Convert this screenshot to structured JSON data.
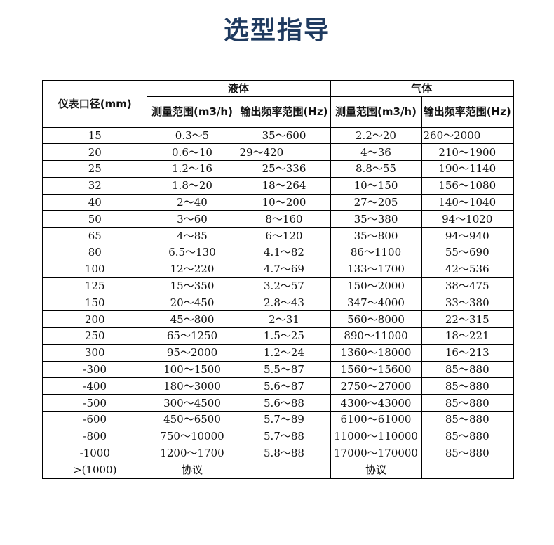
{
  "title": "选型指导",
  "table": {
    "col_diameter": "仪表口径(mm)",
    "group_liquid": "液体",
    "group_gas": "气体",
    "col_flow_range": "测量范围(m3/h)",
    "col_freq_range": "输出频率范围(Hz)",
    "rows": [
      [
        "15",
        "0.3～5",
        "35～600",
        "2.2～20",
        "260～2000"
      ],
      [
        "20",
        "0.6～10",
        "29～420",
        "4～36",
        "210～1900"
      ],
      [
        "25",
        "1.2～16",
        "25～336",
        "8.8～55",
        "190～1140"
      ],
      [
        "32",
        "1.8～20",
        "18～264",
        "10～150",
        "156～1080"
      ],
      [
        "40",
        "2～40",
        "10～200",
        "27～205",
        "140～1040"
      ],
      [
        "50",
        "3～60",
        "8～160",
        "35～380",
        "94～1020"
      ],
      [
        "65",
        "4～85",
        "6～120",
        "35～800",
        "94～940"
      ],
      [
        "80",
        "6.5～130",
        "4.1～82",
        "86～1100",
        "55～690"
      ],
      [
        "100",
        "12～220",
        "4.7～69",
        "133～1700",
        "42～536"
      ],
      [
        "125",
        "15～350",
        "3.2～57",
        "150～2000",
        "38～475"
      ],
      [
        "150",
        "20～450",
        "2.8～43",
        "347～4000",
        "33～380"
      ],
      [
        "200",
        "45～800",
        "2～31",
        "560～8000",
        "22～315"
      ],
      [
        "250",
        "65～1250",
        "1.5～25",
        "890～11000",
        "18～221"
      ],
      [
        "300",
        "95～2000",
        "1.2～24",
        "1360～18000",
        "16～213"
      ],
      [
        "-300",
        "100～1500",
        "5.5～87",
        "1560～15600",
        "85～880"
      ],
      [
        "-400",
        "180～3000",
        "5.6～87",
        "2750～27000",
        "85～880"
      ],
      [
        "-500",
        "300～4500",
        "5.6～88",
        "4300～43000",
        "85～880"
      ],
      [
        "-600",
        "450～6500",
        "5.7～89",
        "6100～61000",
        "85～880"
      ],
      [
        "-800",
        "750～10000",
        "5.7～88",
        "11000～110000",
        "85～880"
      ],
      [
        "-1000",
        "1200～1700",
        "5.8～88",
        "17000～170000",
        "85～880"
      ],
      [
        ">(1000)",
        "协议",
        "",
        "协议",
        ""
      ]
    ]
  }
}
